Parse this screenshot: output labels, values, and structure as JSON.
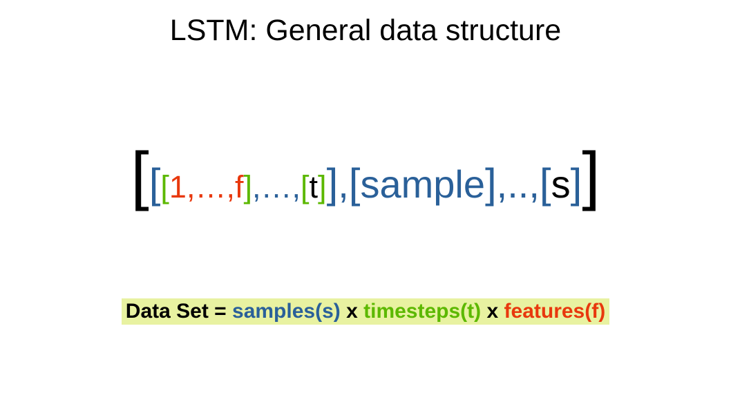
{
  "title": "LSTM: General data structure",
  "colors": {
    "black": "#000000",
    "blue": "#2a6099",
    "green": "#5cb800",
    "red": "#e8380d",
    "highlight_bg": "#e8f2a1",
    "page_bg": "#ffffff"
  },
  "typography": {
    "title_fontsize": 43,
    "outer_bracket_fontsize": 95,
    "mid_bracket_fontsize": 60,
    "mid_text_fontsize": 56,
    "inner_fontsize": 45,
    "legend_fontsize": 30,
    "font_family": "Liberation Sans"
  },
  "formula": {
    "tokens": [
      {
        "text": "[",
        "color": "black",
        "size": "outer"
      },
      {
        "text": "[",
        "color": "blue",
        "size": "mid-br"
      },
      {
        "text": "[",
        "color": "green",
        "size": "inner-br"
      },
      {
        "text": "1,…,",
        "color": "red",
        "size": "inner"
      },
      {
        "text": "f",
        "color": "red",
        "size": "inner"
      },
      {
        "text": "]",
        "color": "green",
        "size": "inner-br"
      },
      {
        "text": ",…,",
        "color": "blue",
        "size": "inner"
      },
      {
        "text": "[",
        "color": "green",
        "size": "inner-br"
      },
      {
        "text": "t",
        "color": "black",
        "size": "inner"
      },
      {
        "text": "]",
        "color": "green",
        "size": "inner-br"
      },
      {
        "text": "]",
        "color": "blue",
        "size": "mid-br"
      },
      {
        "text": ",",
        "color": "blue",
        "size": "mid"
      },
      {
        "text": "[",
        "color": "blue",
        "size": "mid-br"
      },
      {
        "text": "sample",
        "color": "blue",
        "size": "mid"
      },
      {
        "text": "]",
        "color": "blue",
        "size": "mid-br"
      },
      {
        "text": ",..,",
        "color": "blue",
        "size": "mid"
      },
      {
        "text": "[",
        "color": "blue",
        "size": "mid-br"
      },
      {
        "text": "s",
        "color": "black",
        "size": "mid"
      },
      {
        "text": "]",
        "color": "blue",
        "size": "mid-br"
      },
      {
        "text": "]",
        "color": "black",
        "size": "outer"
      }
    ]
  },
  "legend": {
    "parts": [
      {
        "text": "Data Set = ",
        "color": "black"
      },
      {
        "text": "samples(s)",
        "color": "blue"
      },
      {
        "text": " x ",
        "color": "black"
      },
      {
        "text": "timesteps(t)",
        "color": "green"
      },
      {
        "text": " x ",
        "color": "black"
      },
      {
        "text": "features(f)",
        "color": "red"
      }
    ]
  }
}
